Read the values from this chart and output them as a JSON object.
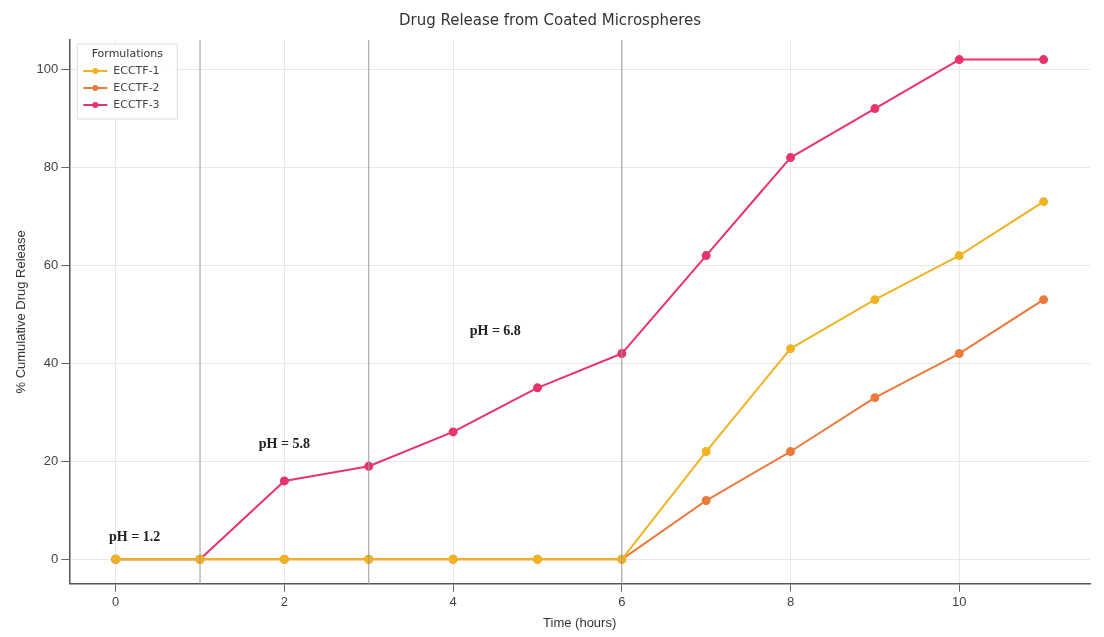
{
  "chart_data": {
    "type": "line",
    "title": "Drug Release from Coated Microspheres",
    "xlabel": "Time (hours)",
    "ylabel": "% Cumulative Drug Release",
    "legend_title": "Formulations",
    "x": [
      0,
      1,
      2,
      3,
      4,
      5,
      6,
      7,
      8,
      9,
      10,
      11
    ],
    "series": [
      {
        "name": "ECCTF-1",
        "color": "#f0b323",
        "values": [
          0,
          0,
          0,
          0,
          0,
          0,
          0,
          22,
          43,
          53,
          62,
          73
        ]
      },
      {
        "name": "ECCTF-2",
        "color": "#ec7a3c",
        "values": [
          0,
          0,
          0,
          0,
          0,
          0,
          0,
          12,
          22,
          33,
          42,
          53
        ]
      },
      {
        "name": "ECCTF-3",
        "color": "#e8336b",
        "values": [
          0,
          0,
          16,
          19,
          26,
          35,
          42,
          62,
          82,
          92,
          102,
          102
        ]
      }
    ],
    "xlim": [
      -0.55,
      11.55
    ],
    "xticks": [
      0,
      2,
      4,
      6,
      8,
      10
    ],
    "ylim": [
      -5,
      106
    ],
    "yticks": [
      0,
      20,
      40,
      60,
      80,
      100
    ],
    "ref_lines": [
      {
        "axis": "x",
        "value": 1,
        "color": "#999999"
      },
      {
        "axis": "x",
        "value": 3,
        "color": "#999999"
      },
      {
        "axis": "x",
        "value": 6,
        "color": "#999999"
      }
    ],
    "annotations": [
      "pH = 1.2",
      "pH = 5.8",
      "pH = 6.8"
    ],
    "grid": true,
    "legend": "top left",
    "marker": "circle",
    "line_style": "solid"
  }
}
